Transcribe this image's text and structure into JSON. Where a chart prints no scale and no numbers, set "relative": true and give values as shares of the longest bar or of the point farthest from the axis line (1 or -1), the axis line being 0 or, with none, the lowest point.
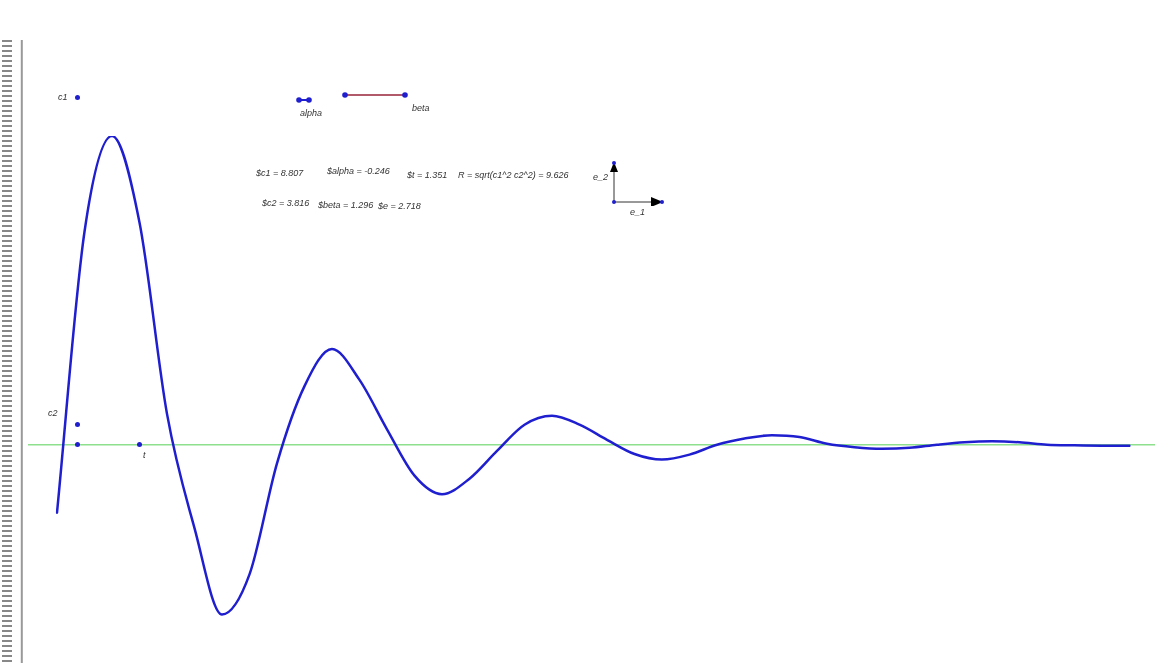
{
  "chart_data": {
    "type": "line",
    "relative": true,
    "legend": false,
    "marker": "none",
    "ref_lines": [
      {
        "axis": "y",
        "value": 0,
        "color": "#8ee08e"
      }
    ],
    "line_style": "solid",
    "categories": [
      null,
      null,
      null,
      null,
      null,
      null,
      null,
      null,
      null,
      null,
      null,
      null,
      null,
      null,
      null,
      null,
      null,
      null,
      null,
      null,
      null,
      null,
      null,
      null,
      null,
      null,
      null,
      null,
      null,
      null,
      null,
      null,
      null,
      null,
      null,
      null,
      null,
      null,
      null,
      null
    ],
    "series": [
      {
        "color": "#1f1fd0",
        "values": [
          -0.22,
          0.69,
          1.0,
          0.72,
          0.1,
          -0.27,
          -0.55,
          -0.42,
          -0.06,
          0.19,
          0.31,
          0.21,
          0.05,
          -0.1,
          -0.16,
          -0.11,
          -0.02,
          0.065,
          0.094,
          0.065,
          0.016,
          -0.03,
          -0.048,
          -0.032,
          0,
          0.02,
          0.031,
          0.025,
          0.003,
          -0.008,
          -0.013,
          -0.01,
          0,
          0.008,
          0.011,
          0.008,
          0,
          -0.002,
          -0.003,
          -0.003
        ]
      }
    ],
    "annotations": [
      "c1",
      "c2",
      "t",
      "alpha",
      "beta",
      "$c1 = 8.807",
      "$alpha = -0.246",
      "$t = 1.351",
      "R = sqrt(c1^2 c2^2) = 9.626",
      "e_2",
      "$c2 = 3.816",
      "$beta = 1.296",
      "$e = 2.718",
      "e_1"
    ]
  }
}
